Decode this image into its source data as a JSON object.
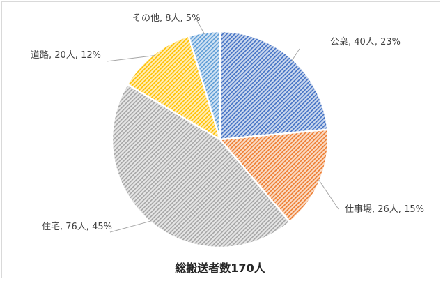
{
  "chart_data": {
    "type": "pie",
    "title": "総搬送者数170人",
    "slices": [
      {
        "category": "公衆",
        "count_label": "40人",
        "percent_label": "23%",
        "value": 40,
        "percent": 23,
        "color": "#4472c4"
      },
      {
        "category": "仕事場",
        "count_label": "26人",
        "percent_label": "15%",
        "value": 26,
        "percent": 15,
        "color": "#ed7d31"
      },
      {
        "category": "住宅",
        "count_label": "76人",
        "percent_label": "45%",
        "value": 76,
        "percent": 45,
        "color": "#a5a5a5"
      },
      {
        "category": "道路",
        "count_label": "20人",
        "percent_label": "12%",
        "value": 20,
        "percent": 12,
        "color": "#ffc000"
      },
      {
        "category": "その他",
        "count_label": "8人",
        "percent_label": "5%",
        "value": 8,
        "percent": 5,
        "color": "#5b9bd5"
      }
    ],
    "label_format": "category, count, percent",
    "fill_style": "diagonal-hatch",
    "legend": "none"
  }
}
